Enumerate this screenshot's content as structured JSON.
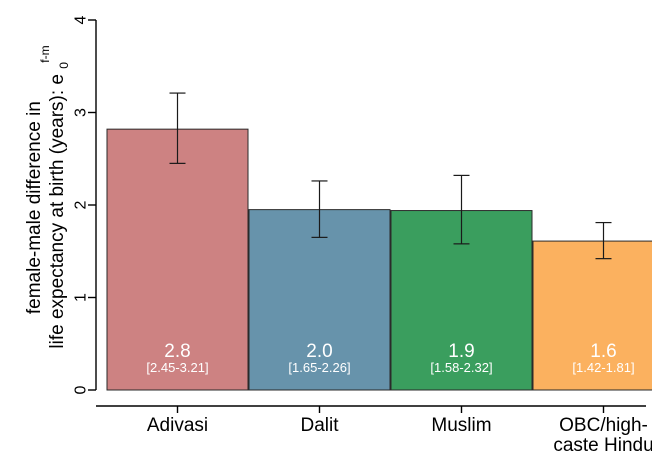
{
  "chart_data": {
    "type": "bar",
    "ylabel": {
      "line1": "female-male difference in",
      "line2": "life expectancy at birth (years): e",
      "sub": "0",
      "sup": "f-m"
    },
    "ylim": [
      0,
      4
    ],
    "yticks": [
      "0",
      "1",
      "2",
      "3",
      "4"
    ],
    "grid": false,
    "categories": [
      {
        "lines": [
          "Adivasi"
        ]
      },
      {
        "lines": [
          "Dalit"
        ]
      },
      {
        "lines": [
          "Muslim"
        ]
      },
      {
        "lines": [
          "OBC/high-",
          "caste Hindu"
        ]
      }
    ],
    "values": [
      2.82,
      1.95,
      1.94,
      1.61
    ],
    "ci_low": [
      2.45,
      1.65,
      1.58,
      1.42
    ],
    "ci_high": [
      3.21,
      2.26,
      2.32,
      1.81
    ],
    "value_labels": [
      "2.8",
      "2.0",
      "1.9",
      "1.6"
    ],
    "ci_labels": [
      "[2.45-3.21]",
      "[1.65-2.26]",
      "[1.58-2.32]",
      "[1.42-1.81]"
    ],
    "colors": [
      "#cd8282",
      "#6793ab",
      "#3a9e5e",
      "#fbb15f"
    ]
  }
}
